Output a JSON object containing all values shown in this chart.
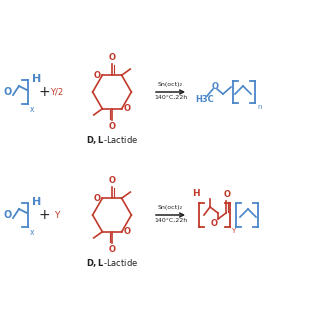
{
  "blue": "#4A86C8",
  "red": "#C0392B",
  "black": "#222222",
  "bg": "#FFFFFF",
  "lactide_label": "D,L-Lactide",
  "cond1": "Sn(oct)₂",
  "cond2": "140°C,22h",
  "coeff1": "Y/2",
  "coeff2": "Y",
  "plus": "+",
  "h3c": "H3C",
  "H": "H",
  "O_atom": "O",
  "x_sub": "x",
  "y_sub": "Y"
}
